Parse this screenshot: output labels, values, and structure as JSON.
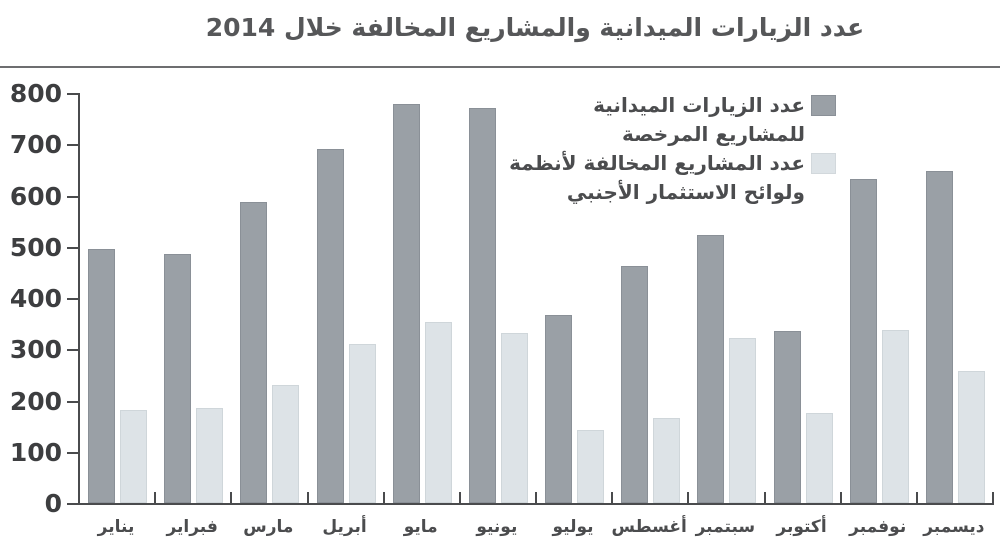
{
  "title": "عدد الزيارات الميدانية والمشاريع المخالفة خلال 2014",
  "legend": [
    {
      "label_lines": [
        "عدد الزيارات الميدانية",
        "للمشاريع المرخصة"
      ],
      "color": "#9aa0a6"
    },
    {
      "label_lines": [
        "عدد المشاريع المخالفة لأنظمة",
        "ولوائح الاستثمار الأجنبي"
      ],
      "color": "#dde3e7"
    }
  ],
  "chart_data": {
    "type": "bar",
    "title": "عدد الزيارات الميدانية والمشاريع المخالفة خلال 2014",
    "categories": [
      "يناير",
      "فبراير",
      "مارس",
      "أبريل",
      "مايو",
      "يونيو",
      "يوليو",
      "أغسطس",
      "سبتمبر",
      "أكتوبر",
      "نوفمبر",
      "ديسمبر"
    ],
    "series": [
      {
        "name": "عدد الزيارات الميدانية للمشاريع المرخصة",
        "color": "#9aa0a6",
        "values": [
          495,
          486,
          588,
          691,
          779,
          771,
          366,
          462,
          522,
          335,
          633,
          648
        ]
      },
      {
        "name": "عدد المشاريع المخالفة لأنظمة ولوائح الاستثمار الأجنبي",
        "color": "#dde3e7",
        "values": [
          182,
          185,
          230,
          310,
          353,
          332,
          142,
          165,
          322,
          176,
          338,
          257
        ]
      }
    ],
    "xlabel": "",
    "ylabel": "",
    "ylim": [
      0,
      800
    ],
    "yticks": [
      0,
      100,
      200,
      300,
      400,
      500,
      600,
      700,
      800
    ],
    "grid": false,
    "legend_position": "top-right"
  },
  "colors": {
    "series_dark": "#9aa0a6",
    "series_light": "#dde3e7",
    "axis": "#4a4b4d",
    "title_text": "#565759",
    "label_text": "#4b4c4e"
  }
}
